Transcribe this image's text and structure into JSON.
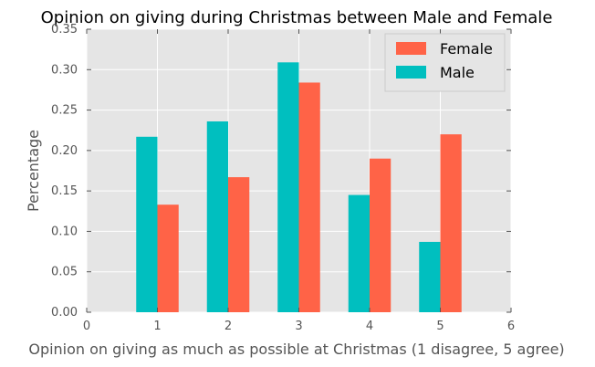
{
  "chart_data": {
    "type": "bar",
    "title": "Opinion on giving during Christmas between Male and Female",
    "xlabel": "Opinion on giving as much as possible at Christmas (1 disagree, 5 agree)",
    "ylabel": "Percentage",
    "categories": [
      1,
      2,
      3,
      4,
      5
    ],
    "x_ticks": [
      "0",
      "1",
      "2",
      "3",
      "4",
      "5",
      "6"
    ],
    "y_ticks": [
      "0.00",
      "0.05",
      "0.10",
      "0.15",
      "0.20",
      "0.25",
      "0.30",
      "0.35"
    ],
    "xlim": [
      0,
      6
    ],
    "ylim": [
      0,
      0.35
    ],
    "grid": true,
    "legend_position": "top-right",
    "series": [
      {
        "name": "Female",
        "color": "#ff6347",
        "values": [
          0.133,
          0.167,
          0.284,
          0.19,
          0.22
        ]
      },
      {
        "name": "Male",
        "color": "#00bfbf",
        "values": [
          0.217,
          0.236,
          0.309,
          0.145,
          0.087
        ]
      }
    ]
  }
}
